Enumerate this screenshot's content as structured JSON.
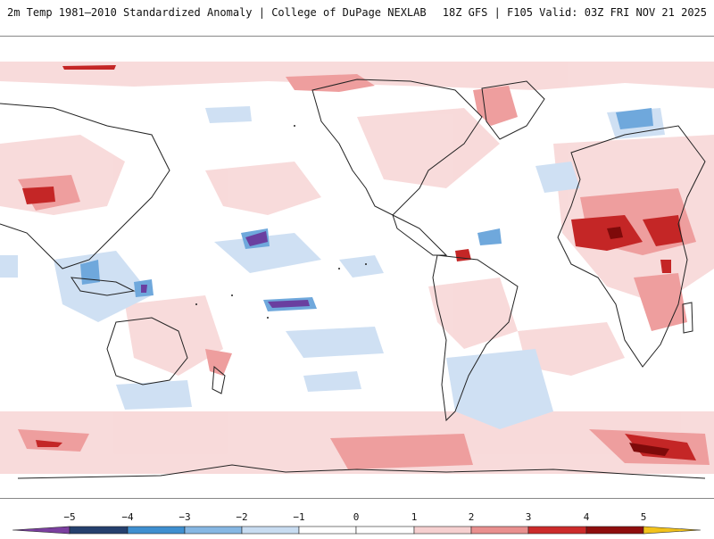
{
  "header": {
    "title": "2m Temp 1981–2010 Standardized Anomaly | College of DuPage NEXLAB",
    "run_info": "18Z GFS | F105 Valid: 03Z FRI NOV 21 2025"
  },
  "map": {
    "projection": "global cylindrical, Pacific-centered",
    "variable": "2m temperature standardized anomaly"
  },
  "colorbar": {
    "labels": [
      "−5",
      "−4",
      "−3",
      "−2",
      "−1",
      "0",
      "1",
      "2",
      "3",
      "4",
      "5"
    ],
    "colors": {
      "lt_minus5": "#7b3fa0",
      "minus5_minus4": "#25406e",
      "minus4_minus3": "#3f8fd0",
      "minus3_minus2": "#86b7e3",
      "minus2_minus1": "#c8dcf1",
      "minus1_zero": "#ffffff",
      "zero_one": "#ffffff",
      "one_two": "#f6d0d0",
      "two_three": "#e9908f",
      "three_four": "#cc2b2b",
      "four_five": "#8e0d0d",
      "gt_five": "#f2c21b"
    }
  }
}
